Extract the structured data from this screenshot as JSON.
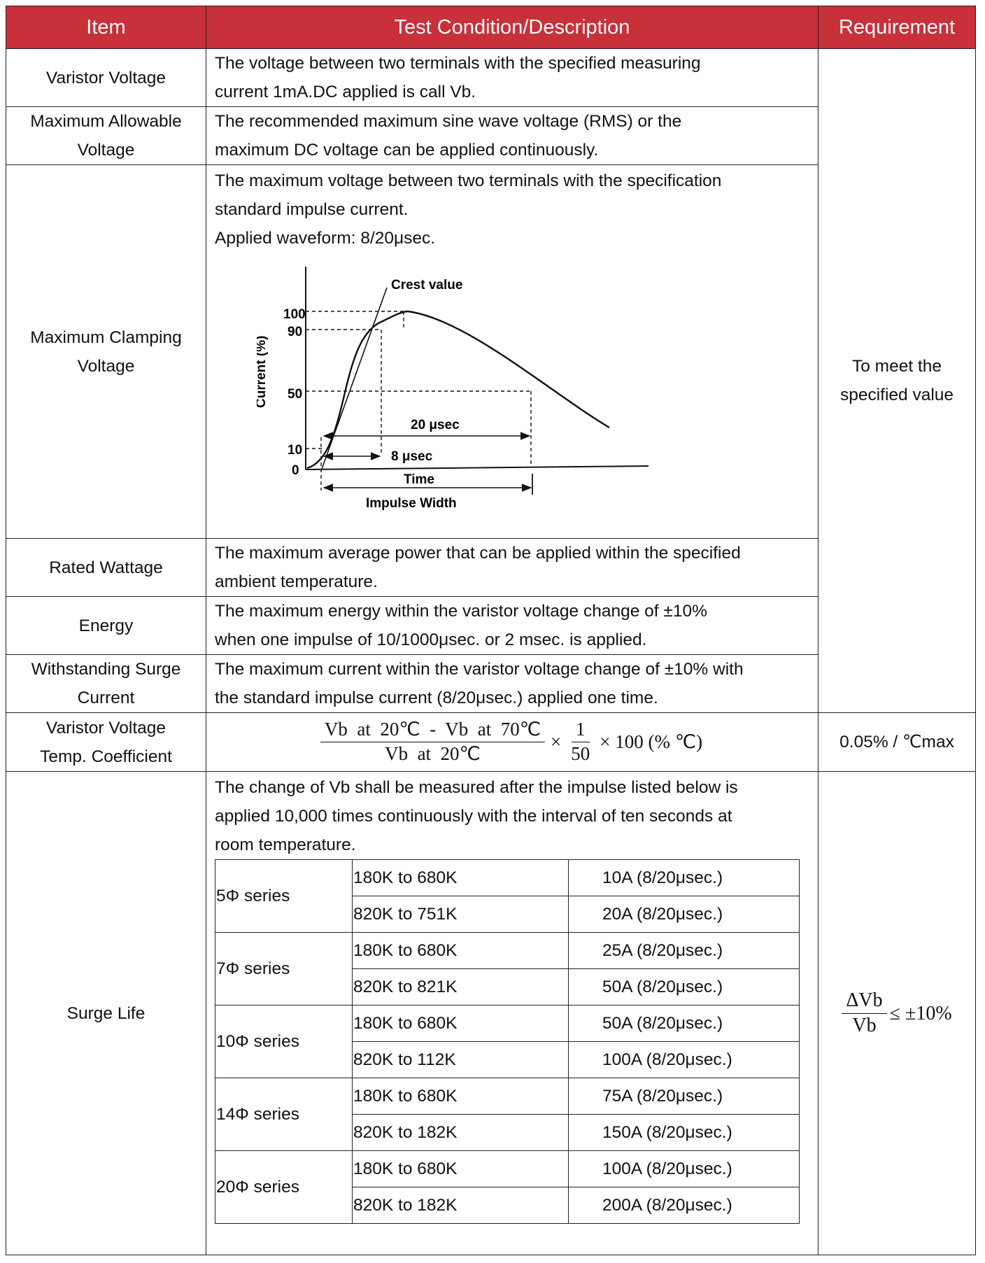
{
  "headers": {
    "item": "Item",
    "condition": "Test Condition/Description",
    "requirement": "Requirement"
  },
  "rows": [
    {
      "item": [
        "Varistor Voltage"
      ],
      "desc": [
        "The voltage between two terminals with the specified measuring",
        "current 1mA.DC applied is call Vb."
      ]
    },
    {
      "item": [
        "Maximum Allowable",
        "Voltage"
      ],
      "desc": [
        "The recommended maximum sine wave voltage (RMS) or the",
        "maximum DC voltage can be applied continuously."
      ]
    },
    {
      "item": [
        "Maximum Clamping",
        "Voltage"
      ],
      "desc": [
        "The maximum voltage between two terminals with the specification",
        "standard impulse current.",
        "Applied waveform: 8/20μsec."
      ]
    },
    {
      "item": [
        "Rated Wattage"
      ],
      "desc": [
        "The maximum average power that can be applied within the specified",
        "ambient temperature."
      ]
    },
    {
      "item": [
        "Energy"
      ],
      "desc": [
        "The maximum energy within the varistor voltage change of ±10%",
        "when one impulse of 10/1000μsec. or 2 msec. is applied."
      ]
    },
    {
      "item": [
        "Withstanding Surge",
        "Current"
      ],
      "desc": [
        "The maximum current within the varistor voltage change of ±10% with",
        "the standard impulse current (8/20μsec.) applied one time."
      ]
    },
    {
      "item": [
        "Varistor Voltage",
        "Temp. Coefficient"
      ]
    },
    {
      "item": [
        "Surge Life"
      ],
      "desc": [
        "The change of Vb shall be measured after the impulse listed below is",
        "applied 10,000 times continuously with the interval of ten seconds at",
        "room temperature."
      ]
    }
  ],
  "requirements": {
    "shared": [
      "To meet the",
      "specified value"
    ],
    "temp_coefficient": "0.05% / ℃max"
  },
  "formula": {
    "numerator": "Vb  at  20℃  -  Vb  at  70℃",
    "denominator": "Vb  at  20℃",
    "times1": "×",
    "frac_num": "1",
    "frac_den": "50",
    "rest": "× 100 (% ℃)"
  },
  "surge_ratio": {
    "num": "ΔVb",
    "den": "Vb",
    "rest": "≤ ±10%"
  },
  "waveform": {
    "crest_label": "Crest value",
    "y_axis_label": "Current  (%)",
    "y_ticks": [
      "100",
      "90",
      "50",
      "10",
      "0"
    ],
    "label_20us": "20 μsec",
    "label_8us": "8 μsec",
    "time_label": "Time",
    "impulse_width_label": "Impulse Width"
  },
  "surge_table": [
    {
      "series": "5Φ series",
      "rows": [
        {
          "range": "180K to 680K",
          "current": "10A (8/20μsec.)"
        },
        {
          "range": "820K to 751K",
          "current": "20A (8/20μsec.)"
        }
      ]
    },
    {
      "series": "7Φ series",
      "rows": [
        {
          "range": "180K to 680K",
          "current": "25A (8/20μsec.)"
        },
        {
          "range": "820K to 821K",
          "current": "50A (8/20μsec.)"
        }
      ]
    },
    {
      "series": "10Φ series",
      "rows": [
        {
          "range": "180K to 680K",
          "current": "50A (8/20μsec.)"
        },
        {
          "range": "820K to 112K",
          "current": "100A (8/20μsec.)"
        }
      ]
    },
    {
      "series": "14Φ series",
      "rows": [
        {
          "range": "180K to 680K",
          "current": "75A (8/20μsec.)"
        },
        {
          "range": "820K to 182K",
          "current": "150A (8/20μsec.)"
        }
      ]
    },
    {
      "series": "20Φ series",
      "rows": [
        {
          "range": "180K to 680K",
          "current": "100A (8/20μsec.)"
        },
        {
          "range": "820K to 182K",
          "current": "200A (8/20μsec.)"
        }
      ]
    }
  ]
}
